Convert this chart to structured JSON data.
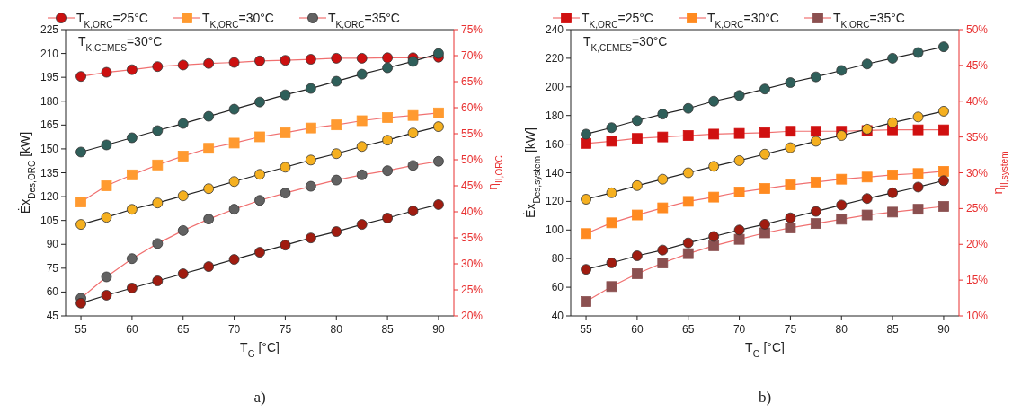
{
  "chart_data": [
    {
      "type": "line",
      "xlabel": "T$_{G}$ [°C]",
      "ylabel": "Ėx$_{Des,ORC}$ [kW]",
      "y2label": "η$_{II,ORC}$",
      "legend": "top",
      "grid": false,
      "annotations": [
        "T$_{K,CEMES}$=30°C",
        "a)"
      ],
      "x": [
        55,
        57.5,
        60,
        62.5,
        65,
        67.5,
        70,
        72.5,
        75,
        77.5,
        80,
        82.5,
        85,
        87.5,
        90
      ],
      "xlim": [
        53.5,
        91.5
      ],
      "xticks": [
        55,
        60,
        65,
        70,
        75,
        80,
        85,
        90
      ],
      "ylim": [
        45,
        225
      ],
      "yticks": [
        45,
        60,
        75,
        90,
        105,
        120,
        135,
        150,
        165,
        180,
        195,
        210,
        225
      ],
      "y2lim": [
        20,
        75
      ],
      "y2ticks": [
        {
          "value": 20,
          "label": "20%"
        },
        {
          "value": 25,
          "label": "25%"
        },
        {
          "value": 30,
          "label": "30%"
        },
        {
          "value": 35,
          "label": "35%"
        },
        {
          "value": 40,
          "label": "40%"
        },
        {
          "value": 45,
          "label": "45%"
        },
        {
          "value": 50,
          "label": "50%"
        },
        {
          "value": 55,
          "label": "55%"
        },
        {
          "value": 60,
          "label": "60%"
        },
        {
          "value": 65,
          "label": "65%"
        },
        {
          "value": 70,
          "label": "70%"
        },
        {
          "value": 75,
          "label": "75%"
        }
      ],
      "series": [
        {
          "name": "T$_{K,ORC}$=25°C",
          "color": "#cc1010",
          "axis": "y2",
          "marker": "circle",
          "values": [
            66.0,
            66.8,
            67.3,
            67.9,
            68.2,
            68.5,
            68.7,
            69.0,
            69.1,
            69.3,
            69.5,
            69.5,
            69.6,
            69.6,
            69.7
          ]
        },
        {
          "name": "T$_{K,ORC}$=30°C",
          "color": "#ff9a30",
          "axis": "y2",
          "marker": "square",
          "values": [
            41.9,
            45.0,
            47.1,
            49.0,
            50.7,
            52.2,
            53.2,
            54.4,
            55.2,
            56.1,
            56.7,
            57.5,
            58.1,
            58.5,
            59.0
          ]
        },
        {
          "name": "T$_{K,ORC}$=35°C",
          "color": "#626262",
          "axis": "y2",
          "marker": "circle",
          "values": [
            23.4,
            27.5,
            31.0,
            33.9,
            36.4,
            38.6,
            40.5,
            42.2,
            43.6,
            44.9,
            46.1,
            47.1,
            47.9,
            48.9,
            49.7
          ]
        },
        {
          "color": "#a01c10",
          "axis": "y",
          "marker": "circle",
          "values": [
            53,
            58,
            62.5,
            67,
            71.5,
            76,
            80.5,
            85,
            89.5,
            94,
            98,
            102.5,
            106.5,
            111,
            115
          ]
        },
        {
          "color": "#f5b020",
          "axis": "y",
          "marker": "circle",
          "values": [
            102.5,
            107,
            112,
            116,
            120.5,
            125,
            129.5,
            134,
            138.5,
            143,
            147,
            151.5,
            155.5,
            160,
            164
          ]
        },
        {
          "color": "#2f5f5a",
          "axis": "y",
          "marker": "circle",
          "values": [
            148,
            152.5,
            157,
            161.5,
            166,
            170.5,
            175,
            179.5,
            184,
            188,
            192.5,
            197,
            201,
            205,
            210
          ]
        }
      ]
    },
    {
      "type": "line",
      "xlabel": "T$_{G}$ [°C]",
      "ylabel": "Ėx$_{Des,system}$ [kW]",
      "y2label": "η$_{II,system}$",
      "legend": "top",
      "grid": false,
      "annotations": [
        "T$_{K,CEMES}$=30°C",
        "b)"
      ],
      "x": [
        55,
        57.5,
        60,
        62.5,
        65,
        67.5,
        70,
        72.5,
        75,
        77.5,
        80,
        82.5,
        85,
        87.5,
        90
      ],
      "xlim": [
        53.5,
        91.5
      ],
      "xticks": [
        55,
        60,
        65,
        70,
        75,
        80,
        85,
        90
      ],
      "ylim": [
        40,
        240
      ],
      "yticks": [
        40,
        60,
        80,
        100,
        120,
        140,
        160,
        180,
        200,
        220,
        240
      ],
      "y2lim": [
        10,
        50
      ],
      "y2ticks": [
        {
          "value": 10,
          "label": "10%"
        },
        {
          "value": 15,
          "label": "15%"
        },
        {
          "value": 20,
          "label": "20%"
        },
        {
          "value": 25,
          "label": "25%"
        },
        {
          "value": 30,
          "label": "30%"
        },
        {
          "value": 35,
          "label": "35%"
        },
        {
          "value": 40,
          "label": "40%"
        },
        {
          "value": 45,
          "label": "45%"
        },
        {
          "value": 50,
          "label": "50%"
        }
      ],
      "series": [
        {
          "name": "T$_{K,ORC}$=25°C",
          "color": "#d01010",
          "axis": "y2",
          "marker": "square",
          "values": [
            34.1,
            34.4,
            34.8,
            35.0,
            35.2,
            35.4,
            35.5,
            35.6,
            35.8,
            35.8,
            35.8,
            35.9,
            36.0,
            36.0,
            36.0
          ]
        },
        {
          "name": "T$_{K,ORC}$=30°C",
          "color": "#ff8a20",
          "axis": "y2",
          "marker": "square",
          "values": [
            21.5,
            23.0,
            24.1,
            25.1,
            26.0,
            26.6,
            27.3,
            27.8,
            28.3,
            28.7,
            29.1,
            29.4,
            29.7,
            29.9,
            30.2
          ]
        },
        {
          "name": "T$_{K,ORC}$=35°C",
          "color": "#8b5050",
          "axis": "y2",
          "marker": "square",
          "values": [
            12.0,
            14.1,
            15.9,
            17.4,
            18.7,
            19.8,
            20.7,
            21.6,
            22.3,
            22.9,
            23.5,
            24.1,
            24.5,
            24.9,
            25.3
          ]
        },
        {
          "color": "#a01c10",
          "axis": "y",
          "marker": "circle",
          "values": [
            72.5,
            77,
            82,
            86,
            91,
            95.5,
            100,
            104,
            108.5,
            113,
            117.5,
            122,
            126,
            130,
            134.5
          ]
        },
        {
          "color": "#f5b020",
          "axis": "y",
          "marker": "circle",
          "values": [
            121.5,
            126,
            131,
            135.5,
            140,
            144.5,
            148.5,
            153,
            157.5,
            162,
            166,
            170.5,
            175,
            179,
            183
          ]
        },
        {
          "color": "#2f5f5a",
          "axis": "y",
          "marker": "circle",
          "values": [
            167,
            171.5,
            176.5,
            181,
            185,
            190,
            194,
            198.5,
            203,
            207,
            211.5,
            216,
            220,
            224,
            228
          ]
        }
      ]
    }
  ]
}
